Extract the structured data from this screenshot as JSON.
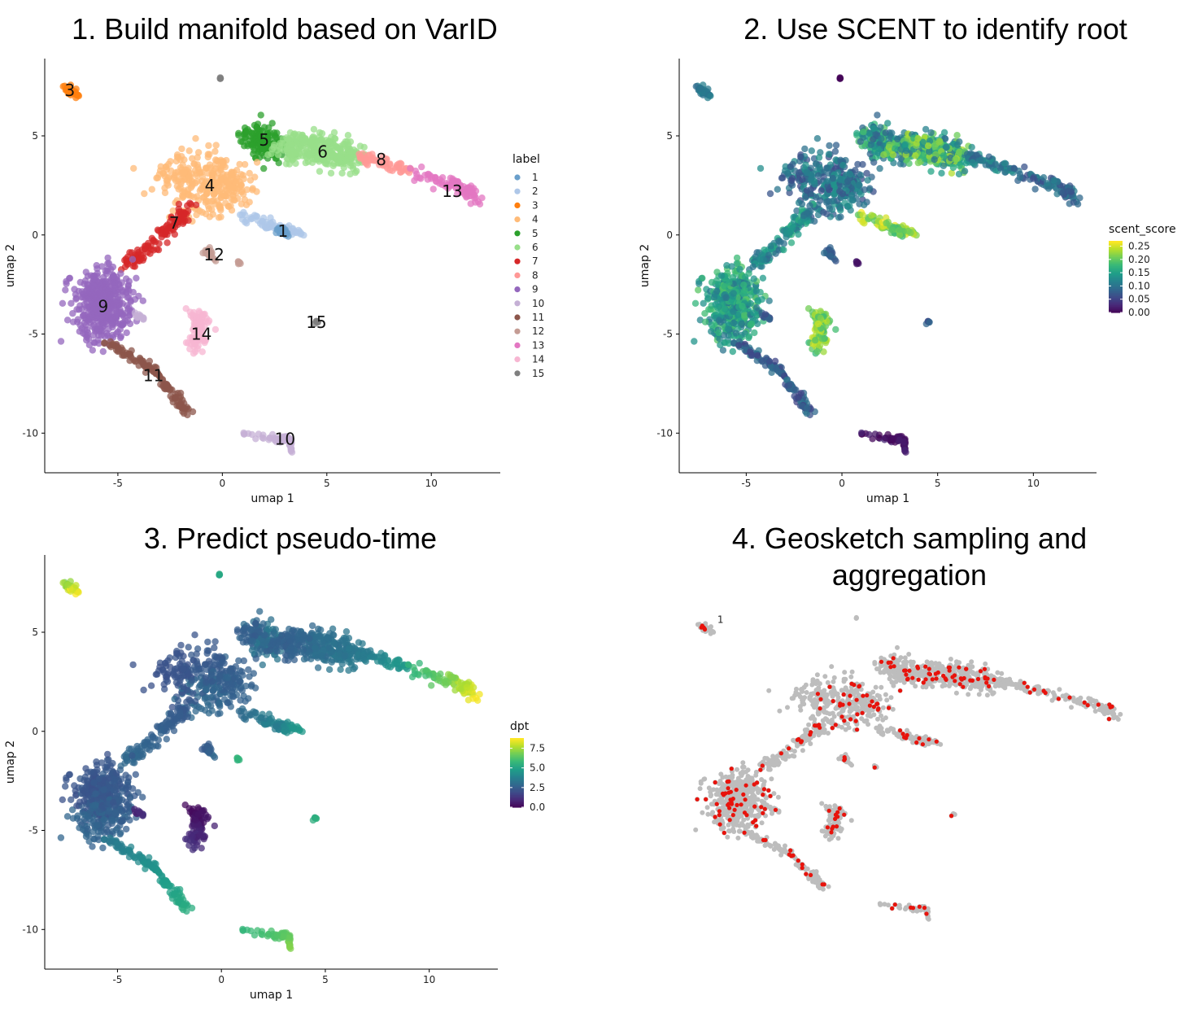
{
  "titles": {
    "p1": "1. Build manifold based on VarID",
    "p2": "2. Use SCENT to identify root",
    "p3": "3. Predict pseudo-time",
    "p4a": "4. Geosketch sampling and",
    "p4b": "aggregation"
  },
  "chart_data": [
    {
      "type": "scatter",
      "title": "1. Build manifold based on VarID",
      "xlabel": "umap 1",
      "ylabel": "umap 2",
      "xticks": [
        -5,
        0,
        5,
        10
      ],
      "yticks": [
        5,
        0,
        -5,
        -10
      ],
      "xlim": [
        -8.5,
        13.3
      ],
      "ylim": [
        -12.0,
        8.9
      ],
      "color_by": "label",
      "legend_title": "label",
      "legend_position": "right",
      "legend": [
        {
          "name": "1",
          "color": "#6a9fcb"
        },
        {
          "name": "2",
          "color": "#aec7e8"
        },
        {
          "name": "3",
          "color": "#ff7f0e"
        },
        {
          "name": "4",
          "color": "#ffbb78"
        },
        {
          "name": "5",
          "color": "#2ca02c"
        },
        {
          "name": "6",
          "color": "#98df8a"
        },
        {
          "name": "7",
          "color": "#d62728"
        },
        {
          "name": "8",
          "color": "#ff9896"
        },
        {
          "name": "9",
          "color": "#9467bd"
        },
        {
          "name": "10",
          "color": "#c5b0d5"
        },
        {
          "name": "11",
          "color": "#8c564b"
        },
        {
          "name": "12",
          "color": "#c49c94"
        },
        {
          "name": "13",
          "color": "#e377c2"
        },
        {
          "name": "14",
          "color": "#f7b6d2"
        },
        {
          "name": "15",
          "color": "#7f7f7f"
        }
      ],
      "cluster_labels": [
        {
          "text": "3",
          "x": -7.3,
          "y": 7.3
        },
        {
          "text": "5",
          "x": 2.0,
          "y": 4.8
        },
        {
          "text": "6",
          "x": 4.8,
          "y": 4.2
        },
        {
          "text": "8",
          "x": 7.6,
          "y": 3.8
        },
        {
          "text": "4",
          "x": -0.6,
          "y": 2.5
        },
        {
          "text": "13",
          "x": 11.0,
          "y": 2.2
        },
        {
          "text": "7",
          "x": -2.3,
          "y": 0.6
        },
        {
          "text": "1",
          "x": 2.9,
          "y": 0.2
        },
        {
          "text": "12",
          "x": -0.4,
          "y": -1.0
        },
        {
          "text": "9",
          "x": -5.7,
          "y": -3.6
        },
        {
          "text": "15",
          "x": 4.5,
          "y": -4.4
        },
        {
          "text": "14",
          "x": -1.0,
          "y": -5.0
        },
        {
          "text": "11",
          "x": -3.3,
          "y": -7.1
        },
        {
          "text": "10",
          "x": 3.0,
          "y": -10.3
        }
      ]
    },
    {
      "type": "scatter",
      "title": "2. Use SCENT to identify root",
      "xlabel": "umap 1",
      "ylabel": "umap 2",
      "xticks": [
        -5,
        0,
        5,
        10
      ],
      "yticks": [
        5,
        0,
        -5,
        -10
      ],
      "xlim": [
        -8.5,
        13.3
      ],
      "ylim": [
        -12.0,
        8.9
      ],
      "color_by": "scent_score",
      "colorbar": {
        "title": "scent_score",
        "ticks": [
          "0.25",
          "0.20",
          "0.15",
          "0.10",
          "0.05",
          "0.00"
        ],
        "min": 0.0,
        "max": 0.27,
        "palette": "viridis"
      }
    },
    {
      "type": "scatter",
      "title": "3. Predict pseudo-time",
      "xlabel": "umap 1",
      "ylabel": "umap 2",
      "xticks": [
        -5,
        0,
        5,
        10
      ],
      "yticks": [
        5,
        0,
        -5,
        -10
      ],
      "xlim": [
        -8.5,
        13.3
      ],
      "ylim": [
        -12.0,
        8.9
      ],
      "color_by": "dpt",
      "colorbar": {
        "title": "dpt",
        "ticks": [
          "7.5",
          "5.0",
          "2.5",
          "0.0"
        ],
        "min": 0.0,
        "max": 8.8,
        "palette": "viridis"
      }
    },
    {
      "type": "scatter",
      "title": "4. Geosketch sampling and aggregation",
      "axes": "none",
      "base_color": "#bdbdbd",
      "highlight_color": "#e8130c",
      "annotation": "1"
    }
  ],
  "colors": {
    "gray": "#bdbdbd",
    "red": "#e8130c",
    "axis": "#000000"
  }
}
